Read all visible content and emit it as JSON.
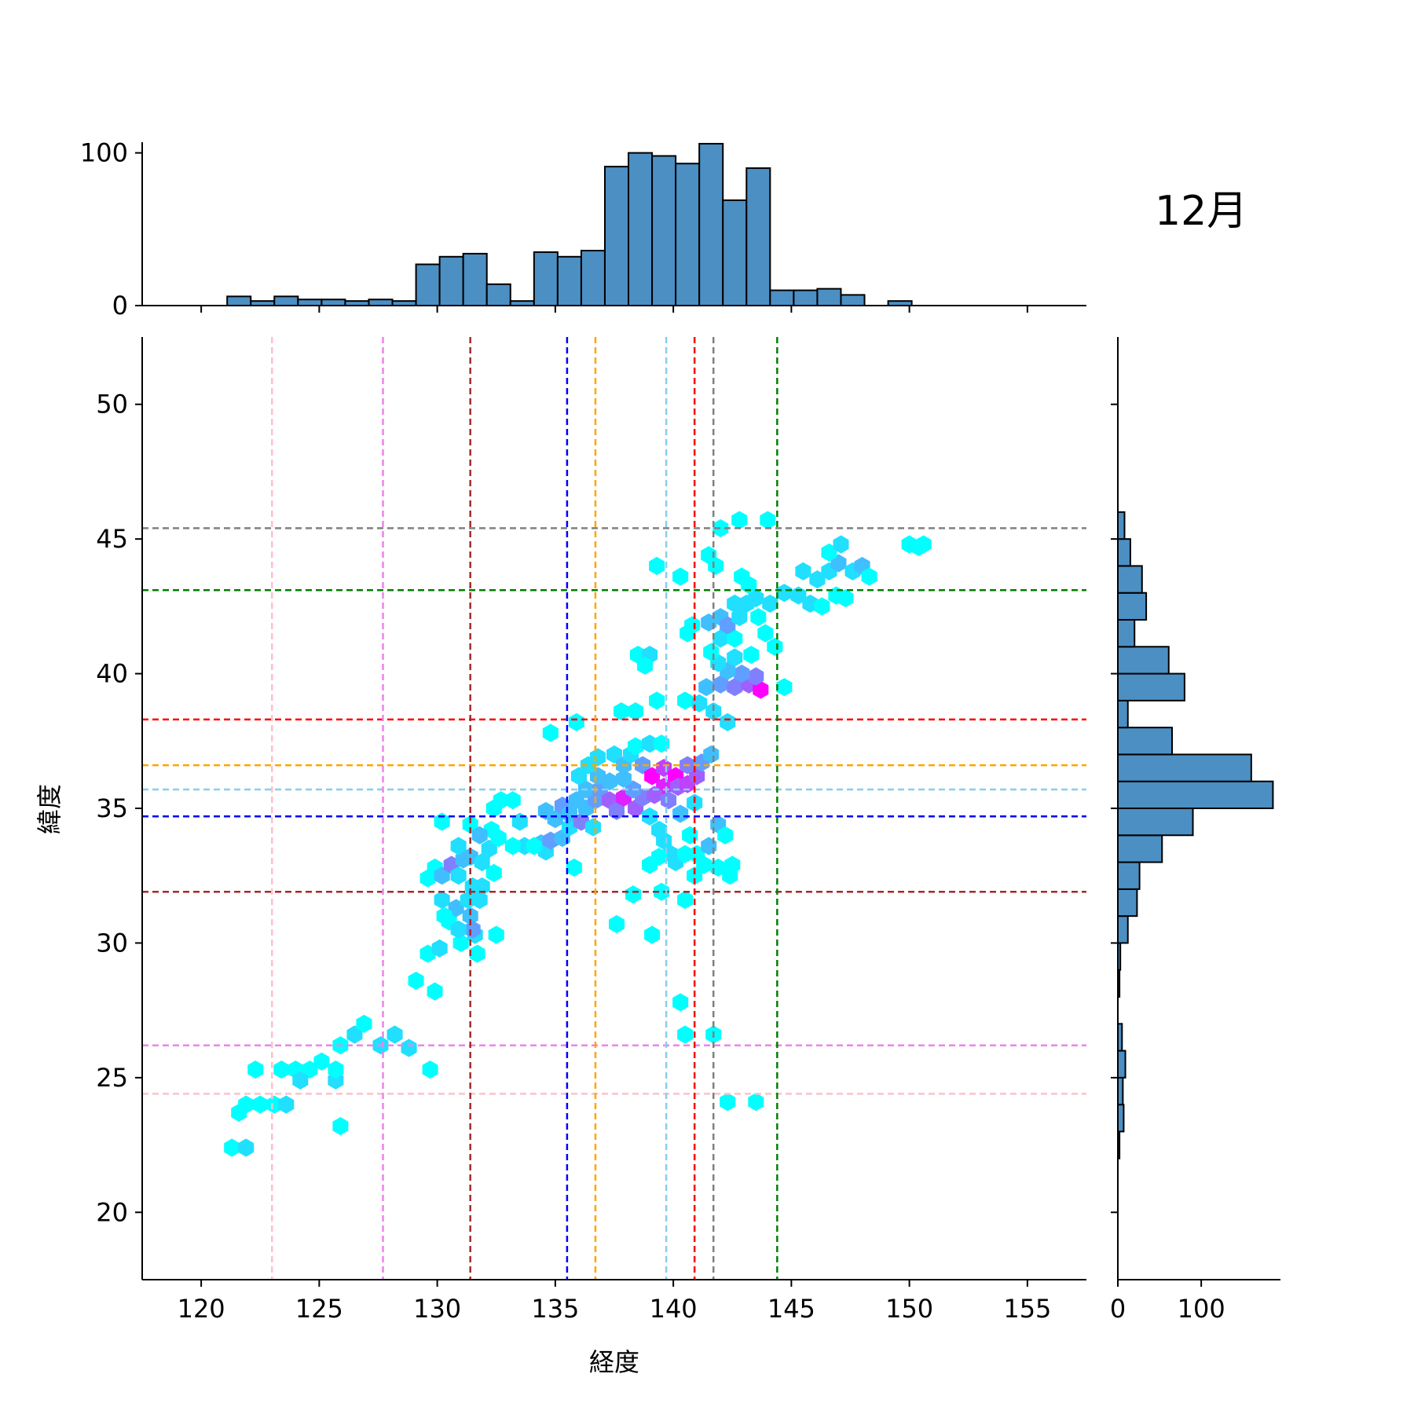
{
  "chart_data": {
    "type": "hexbin_joint",
    "annotation": "12月",
    "xlabel": "経度",
    "ylabel": "緯度",
    "main": {
      "xlim": [
        117.5,
        157.5
      ],
      "ylim": [
        17.5,
        52.5
      ],
      "xticks": [
        120,
        125,
        130,
        135,
        140,
        145,
        150,
        155
      ],
      "yticks": [
        20,
        25,
        30,
        35,
        40,
        45,
        50
      ],
      "hex_colormap": [
        "#00ffff",
        "#ff00ff"
      ],
      "points": [
        [
          121.3,
          22.4,
          1
        ],
        [
          121.9,
          22.4,
          2
        ],
        [
          121.6,
          23.7,
          1
        ],
        [
          121.9,
          24.0,
          1
        ],
        [
          122.5,
          24.0,
          1
        ],
        [
          123.1,
          24.0,
          1
        ],
        [
          123.6,
          24.0,
          2
        ],
        [
          122.3,
          25.3,
          1
        ],
        [
          123.4,
          25.3,
          1
        ],
        [
          124.0,
          25.3,
          1
        ],
        [
          124.6,
          25.3,
          1
        ],
        [
          125.1,
          25.6,
          1
        ],
        [
          124.2,
          24.9,
          2
        ],
        [
          125.7,
          24.9,
          2
        ],
        [
          125.7,
          25.3,
          1
        ],
        [
          125.9,
          26.2,
          1
        ],
        [
          126.5,
          26.6,
          2
        ],
        [
          126.9,
          27.0,
          1
        ],
        [
          127.6,
          26.2,
          2
        ],
        [
          128.2,
          26.6,
          2
        ],
        [
          128.8,
          26.1,
          2
        ],
        [
          125.9,
          23.2,
          1
        ],
        [
          129.7,
          25.3,
          1
        ],
        [
          129.1,
          28.6,
          1
        ],
        [
          129.9,
          28.2,
          1
        ],
        [
          129.6,
          29.6,
          1
        ],
        [
          130.1,
          29.8,
          2
        ],
        [
          130.5,
          30.8,
          1
        ],
        [
          131.0,
          30.0,
          1
        ],
        [
          131.7,
          29.6,
          1
        ],
        [
          131.6,
          30.3,
          2
        ],
        [
          132.5,
          30.3,
          1
        ],
        [
          129.6,
          32.4,
          1
        ],
        [
          129.9,
          32.8,
          1
        ],
        [
          130.2,
          32.5,
          3
        ],
        [
          130.6,
          32.9,
          5
        ],
        [
          131.1,
          33.1,
          3
        ],
        [
          130.9,
          32.5,
          2
        ],
        [
          131.5,
          32.1,
          2
        ],
        [
          131.9,
          32.1,
          2
        ],
        [
          132.4,
          32.6,
          1
        ],
        [
          130.2,
          31.6,
          2
        ],
        [
          130.8,
          31.3,
          3
        ],
        [
          131.4,
          31.0,
          3
        ],
        [
          131.5,
          30.5,
          4
        ],
        [
          130.9,
          30.5,
          2
        ],
        [
          131.3,
          31.6,
          2
        ],
        [
          131.8,
          31.6,
          2
        ],
        [
          130.3,
          31.0,
          1
        ],
        [
          130.9,
          33.6,
          2
        ],
        [
          131.4,
          33.2,
          3
        ],
        [
          131.9,
          33.0,
          2
        ],
        [
          132.2,
          33.5,
          2
        ],
        [
          132.6,
          33.9,
          1
        ],
        [
          132.3,
          34.2,
          1
        ],
        [
          131.4,
          34.4,
          1
        ],
        [
          130.2,
          34.5,
          1
        ],
        [
          131.8,
          34.0,
          3
        ],
        [
          132.4,
          35.0,
          1
        ],
        [
          132.7,
          35.3,
          1
        ],
        [
          133.2,
          35.3,
          1
        ],
        [
          133.5,
          34.5,
          2
        ],
        [
          133.7,
          33.6,
          2
        ],
        [
          134.4,
          33.7,
          3
        ],
        [
          134.6,
          33.4,
          2
        ],
        [
          134.8,
          33.8,
          4
        ],
        [
          135.3,
          33.9,
          3
        ],
        [
          135.6,
          34.3,
          2
        ],
        [
          134.6,
          34.9,
          3
        ],
        [
          135.0,
          34.6,
          3
        ],
        [
          135.3,
          35.1,
          4
        ],
        [
          135.6,
          34.8,
          3
        ],
        [
          135.9,
          35.3,
          3
        ],
        [
          136.1,
          34.5,
          5
        ],
        [
          136.3,
          35.0,
          3
        ],
        [
          136.6,
          34.3,
          2
        ],
        [
          136.7,
          35.3,
          4
        ],
        [
          136.3,
          35.7,
          3
        ],
        [
          136.9,
          35.7,
          4
        ],
        [
          137.3,
          35.3,
          6
        ],
        [
          137.6,
          34.9,
          5
        ],
        [
          137.9,
          35.4,
          8
        ],
        [
          138.4,
          35.0,
          6
        ],
        [
          138.7,
          35.4,
          5
        ],
        [
          138.3,
          35.7,
          4
        ],
        [
          137.9,
          36.1,
          3
        ],
        [
          137.3,
          36.0,
          3
        ],
        [
          136.8,
          36.2,
          3
        ],
        [
          136.4,
          36.6,
          2
        ],
        [
          136.0,
          36.2,
          2
        ],
        [
          136.8,
          36.9,
          2
        ],
        [
          137.5,
          37.0,
          2
        ],
        [
          137.9,
          36.6,
          3
        ],
        [
          138.2,
          37.0,
          2
        ],
        [
          138.7,
          36.6,
          4
        ],
        [
          138.4,
          37.3,
          1
        ],
        [
          139.0,
          37.4,
          2
        ],
        [
          139.5,
          37.4,
          1
        ],
        [
          139.1,
          36.2,
          9
        ],
        [
          139.6,
          36.5,
          7
        ],
        [
          140.1,
          36.2,
          9
        ],
        [
          139.6,
          35.8,
          8
        ],
        [
          139.2,
          35.5,
          6
        ],
        [
          139.8,
          35.3,
          5
        ],
        [
          140.2,
          35.8,
          6
        ],
        [
          140.6,
          35.9,
          7
        ],
        [
          141.0,
          36.2,
          6
        ],
        [
          140.6,
          36.6,
          5
        ],
        [
          141.2,
          36.7,
          4
        ],
        [
          141.6,
          37.0,
          3
        ],
        [
          140.3,
          34.8,
          3
        ],
        [
          140.9,
          35.2,
          2
        ],
        [
          139.0,
          34.7,
          2
        ],
        [
          139.4,
          34.2,
          2
        ],
        [
          139.6,
          33.8,
          2
        ],
        [
          139.9,
          33.3,
          2
        ],
        [
          139.4,
          33.2,
          1
        ],
        [
          139.0,
          32.9,
          1
        ],
        [
          140.1,
          33.0,
          2
        ],
        [
          140.5,
          33.3,
          1
        ],
        [
          140.7,
          34.0,
          1
        ],
        [
          141.0,
          33.3,
          1
        ],
        [
          141.3,
          32.9,
          1
        ],
        [
          141.5,
          33.6,
          3
        ],
        [
          141.9,
          34.4,
          3
        ],
        [
          142.2,
          34.0,
          1
        ],
        [
          141.9,
          32.8,
          1
        ],
        [
          142.4,
          32.5,
          1
        ],
        [
          142.5,
          32.9,
          1
        ],
        [
          140.9,
          32.5,
          1
        ],
        [
          139.5,
          31.9,
          1
        ],
        [
          138.3,
          31.8,
          1
        ],
        [
          140.5,
          31.6,
          1
        ],
        [
          137.6,
          30.7,
          1
        ],
        [
          139.1,
          30.3,
          1
        ],
        [
          140.3,
          27.8,
          1
        ],
        [
          140.5,
          26.6,
          1
        ],
        [
          141.7,
          26.6,
          1
        ],
        [
          142.3,
          24.1,
          1
        ],
        [
          143.5,
          24.1,
          1
        ],
        [
          133.2,
          33.6,
          1
        ],
        [
          134.1,
          33.6,
          1
        ],
        [
          135.8,
          32.8,
          1
        ],
        [
          134.8,
          37.8,
          1
        ],
        [
          135.9,
          38.2,
          1
        ],
        [
          137.8,
          38.6,
          1
        ],
        [
          138.4,
          38.6,
          1
        ],
        [
          139.3,
          39.0,
          1
        ],
        [
          140.5,
          39.0,
          1
        ],
        [
          141.1,
          38.9,
          2
        ],
        [
          141.7,
          38.6,
          2
        ],
        [
          142.3,
          38.2,
          2
        ],
        [
          141.4,
          39.5,
          3
        ],
        [
          142.0,
          39.6,
          4
        ],
        [
          142.6,
          39.5,
          5
        ],
        [
          143.2,
          39.6,
          6
        ],
        [
          143.7,
          39.4,
          9
        ],
        [
          143.5,
          39.9,
          5
        ],
        [
          142.9,
          40.0,
          4
        ],
        [
          142.3,
          40.1,
          3
        ],
        [
          141.9,
          40.4,
          2
        ],
        [
          142.6,
          40.6,
          2
        ],
        [
          143.3,
          40.7,
          1
        ],
        [
          142.0,
          41.3,
          2
        ],
        [
          142.6,
          41.3,
          1
        ],
        [
          141.6,
          40.8,
          1
        ],
        [
          140.6,
          41.5,
          1
        ],
        [
          140.8,
          41.8,
          1
        ],
        [
          141.5,
          41.9,
          3
        ],
        [
          142.0,
          42.1,
          3
        ],
        [
          142.3,
          41.8,
          4
        ],
        [
          142.8,
          42.1,
          2
        ],
        [
          143.1,
          42.6,
          2
        ],
        [
          142.6,
          42.6,
          2
        ],
        [
          143.5,
          42.8,
          2
        ],
        [
          144.1,
          42.6,
          2
        ],
        [
          144.3,
          41.0,
          1
        ],
        [
          144.7,
          39.5,
          1
        ],
        [
          143.9,
          41.5,
          1
        ],
        [
          142.9,
          43.6,
          1
        ],
        [
          143.2,
          43.3,
          1
        ],
        [
          144.7,
          43.0,
          2
        ],
        [
          145.3,
          42.9,
          2
        ],
        [
          145.8,
          42.6,
          2
        ],
        [
          146.3,
          42.5,
          1
        ],
        [
          145.5,
          43.8,
          2
        ],
        [
          146.1,
          43.5,
          2
        ],
        [
          146.6,
          43.8,
          2
        ],
        [
          147.0,
          44.1,
          3
        ],
        [
          147.6,
          43.8,
          2
        ],
        [
          148.0,
          44.0,
          3
        ],
        [
          148.3,
          43.6,
          1
        ],
        [
          146.9,
          42.9,
          1
        ],
        [
          147.3,
          42.8,
          1
        ],
        [
          146.6,
          44.5,
          1
        ],
        [
          147.1,
          44.8,
          2
        ],
        [
          142.0,
          45.4,
          1
        ],
        [
          142.8,
          45.7,
          1
        ],
        [
          144.0,
          45.7,
          1
        ],
        [
          141.5,
          44.4,
          1
        ],
        [
          141.8,
          44.0,
          1
        ],
        [
          139.3,
          44.0,
          1
        ],
        [
          140.3,
          43.6,
          1
        ],
        [
          138.5,
          40.7,
          1
        ],
        [
          139.0,
          40.7,
          2
        ],
        [
          138.8,
          40.3,
          1
        ],
        [
          143.6,
          42.1,
          1
        ],
        [
          150.0,
          44.8,
          1
        ],
        [
          150.4,
          44.7,
          1
        ],
        [
          150.6,
          44.8,
          1
        ]
      ]
    },
    "vlines": [
      {
        "x": 123.0,
        "color": "#ffc0cb"
      },
      {
        "x": 127.7,
        "color": "#ee82ee"
      },
      {
        "x": 131.4,
        "color": "#a52a2a"
      },
      {
        "x": 135.5,
        "color": "#0000ff"
      },
      {
        "x": 136.7,
        "color": "#ffa500"
      },
      {
        "x": 139.7,
        "color": "#87ceeb"
      },
      {
        "x": 140.9,
        "color": "#ff0000"
      },
      {
        "x": 141.7,
        "color": "#808080"
      },
      {
        "x": 144.4,
        "color": "#008000"
      }
    ],
    "hlines": [
      {
        "y": 45.4,
        "color": "#808080"
      },
      {
        "y": 43.1,
        "color": "#008000"
      },
      {
        "y": 38.3,
        "color": "#ff0000"
      },
      {
        "y": 36.6,
        "color": "#ffa500"
      },
      {
        "y": 35.7,
        "color": "#87ceeb"
      },
      {
        "y": 34.7,
        "color": "#0000ff"
      },
      {
        "y": 31.9,
        "color": "#a52a2a"
      },
      {
        "y": 26.2,
        "color": "#ee82ee"
      },
      {
        "y": 24.4,
        "color": "#ffc0cb"
      }
    ],
    "top_hist": {
      "bar_color": "#4c8fc3",
      "ylim": [
        0,
        107
      ],
      "yticks": [
        0,
        100
      ],
      "bins": [
        [
          121.1,
          122.1,
          6
        ],
        [
          122.1,
          123.1,
          3
        ],
        [
          123.1,
          124.1,
          6
        ],
        [
          124.1,
          125.1,
          4
        ],
        [
          125.1,
          126.1,
          4
        ],
        [
          126.1,
          127.1,
          3
        ],
        [
          127.1,
          128.1,
          4
        ],
        [
          128.1,
          129.1,
          3
        ],
        [
          129.1,
          130.1,
          27
        ],
        [
          130.1,
          131.1,
          32
        ],
        [
          131.1,
          132.1,
          34
        ],
        [
          132.1,
          133.1,
          14
        ],
        [
          133.1,
          134.1,
          3
        ],
        [
          134.1,
          135.1,
          35
        ],
        [
          135.1,
          136.1,
          32
        ],
        [
          136.1,
          137.1,
          36
        ],
        [
          137.1,
          138.1,
          91
        ],
        [
          138.1,
          139.1,
          100
        ],
        [
          139.1,
          140.1,
          98
        ],
        [
          140.1,
          141.1,
          93
        ],
        [
          141.1,
          142.1,
          106
        ],
        [
          142.1,
          143.1,
          69
        ],
        [
          143.1,
          144.1,
          90
        ],
        [
          144.1,
          145.1,
          10
        ],
        [
          145.1,
          146.1,
          10
        ],
        [
          146.1,
          147.1,
          11
        ],
        [
          147.1,
          148.1,
          7
        ],
        [
          148.1,
          149.1,
          0
        ],
        [
          149.1,
          150.1,
          3
        ]
      ]
    },
    "right_hist": {
      "bar_color": "#4c8fc3",
      "xlim": [
        0,
        195
      ],
      "xticks": [
        0,
        100
      ],
      "bins": [
        [
          22.0,
          23.0,
          2
        ],
        [
          23.0,
          24.0,
          7
        ],
        [
          24.0,
          25.0,
          6
        ],
        [
          25.0,
          26.0,
          9
        ],
        [
          26.0,
          27.0,
          5
        ],
        [
          27.0,
          28.0,
          0
        ],
        [
          28.0,
          29.0,
          2
        ],
        [
          29.0,
          30.0,
          3
        ],
        [
          30.0,
          31.0,
          12
        ],
        [
          31.0,
          32.0,
          23
        ],
        [
          32.0,
          33.0,
          26
        ],
        [
          33.0,
          34.0,
          53
        ],
        [
          34.0,
          35.0,
          90
        ],
        [
          35.0,
          36.0,
          186
        ],
        [
          36.0,
          37.0,
          160
        ],
        [
          37.0,
          38.0,
          65
        ],
        [
          38.0,
          39.0,
          12
        ],
        [
          39.0,
          40.0,
          80
        ],
        [
          40.0,
          41.0,
          61
        ],
        [
          41.0,
          42.0,
          20
        ],
        [
          42.0,
          43.0,
          34
        ],
        [
          43.0,
          44.0,
          29
        ],
        [
          44.0,
          45.0,
          15
        ],
        [
          45.0,
          46.0,
          8
        ]
      ]
    }
  }
}
